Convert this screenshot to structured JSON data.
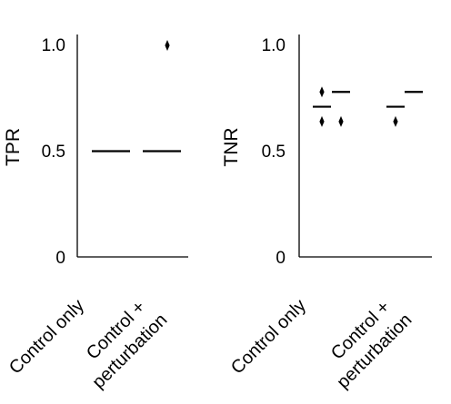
{
  "chart_data": [
    {
      "type": "boxplot",
      "ylabel": "TPR",
      "ylim": [
        0,
        1
      ],
      "yticks": [
        "0",
        "0.5",
        "1.0"
      ],
      "yticks_values": [
        0,
        0.5,
        1.0
      ],
      "categories": [
        "Control only",
        "Control +\nperturbation"
      ],
      "groups": [
        {
          "name": "Control only",
          "boxes": [
            {
              "median": 0.5
            }
          ],
          "outliers": []
        },
        {
          "name": "Control + perturbation",
          "boxes": [
            {
              "median": 0.5
            }
          ],
          "outliers": [
            1.0
          ]
        }
      ]
    },
    {
      "type": "boxplot",
      "ylabel": "TNR",
      "ylim": [
        0,
        1
      ],
      "yticks": [
        "0",
        "0.5",
        "1.0"
      ],
      "yticks_values": [
        0,
        0.5,
        1.0
      ],
      "categories": [
        "Control only",
        "Control +\nperturbation"
      ],
      "groups": [
        {
          "name": "Control only",
          "boxes": [
            {
              "median": 0.71,
              "outliers": [
                0.78,
                0.64
              ]
            },
            {
              "median": 0.78,
              "outliers": [
                0.64
              ]
            }
          ]
        },
        {
          "name": "Control + perturbation",
          "boxes": [
            {
              "median": 0.71,
              "outliers": [
                0.64
              ]
            },
            {
              "median": 0.78,
              "outliers": []
            }
          ]
        }
      ]
    }
  ]
}
